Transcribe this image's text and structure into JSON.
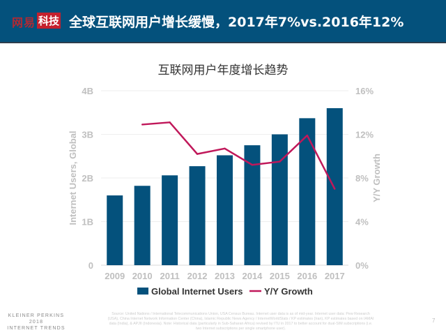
{
  "header": {
    "logo_part1": "网易",
    "logo_part2": "科技",
    "headline": "全球互联网用户增长缓慢，2017年7%vs.2016年12%",
    "background": "#04517c"
  },
  "chart_data": {
    "type": "bar+line",
    "title": "互联网用户年度增长趋势",
    "categories": [
      "2009",
      "2010",
      "2011",
      "2012",
      "2013",
      "2014",
      "2015",
      "2016",
      "2017"
    ],
    "series": [
      {
        "name": "Global Internet Users",
        "type": "bar",
        "axis": "left",
        "color": "#04517c",
        "values": [
          1.6,
          1.82,
          2.06,
          2.27,
          2.52,
          2.75,
          3.0,
          3.37,
          3.6
        ]
      },
      {
        "name": "Y/Y Growth",
        "type": "line",
        "axis": "right",
        "color": "#c0185a",
        "values": [
          null,
          12.9,
          13.1,
          10.2,
          10.7,
          9.2,
          9.5,
          11.9,
          7.0
        ]
      }
    ],
    "ylabel_left": "Internet Users, Global",
    "ylabel_right": "Y/Y Growth",
    "ylim_left": [
      0,
      4
    ],
    "ylim_right": [
      0,
      16
    ],
    "yticks_left": [
      "0",
      "1B",
      "2B",
      "3B",
      "4B"
    ],
    "yticks_right": [
      "0%",
      "4%",
      "8%",
      "12%",
      "16%"
    ],
    "grid": true,
    "legend": "bottom"
  },
  "footer": {
    "brand_line1": "KLEINER PERKINS",
    "brand_line2": "2018",
    "brand_line3": "INTERNET TRENDS",
    "source": "Source: United Nations / International Telecommunications Union, USA Census Bureau. Internet user data is as of mid-year. Internet user data: Pew Research (USA), China Internet Network Information Center (China), Islamic Republic News Agency / InternetWorldStats / KP estimates (Iran), KP estimates based on IAMAI data (India), & APJII (Indonesia). Note: Historical data (particularly in Sub-Saharan Africa) revised by ITU in 2017 to better account for dual-SIM subscriptions (i.e. two Internet subscriptions per single smartphone user).",
    "page_number": "7"
  }
}
